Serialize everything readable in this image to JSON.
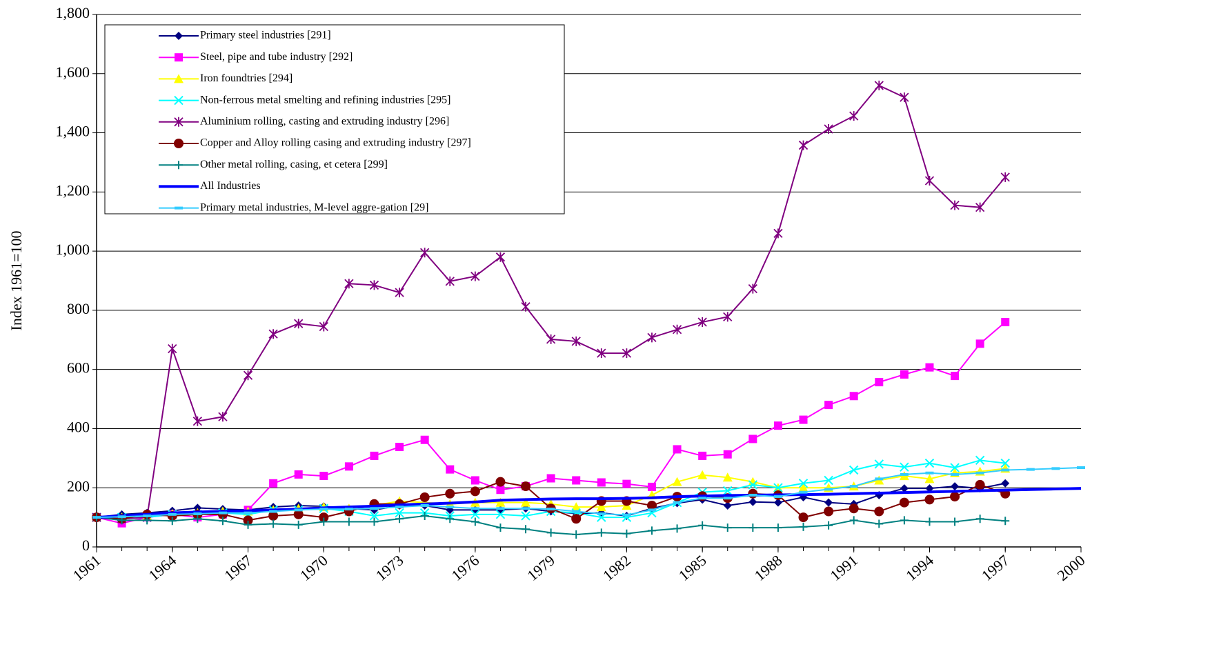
{
  "chart_data": {
    "type": "line",
    "y_label": "Index 1961=100",
    "x": [
      1961,
      1962,
      1963,
      1964,
      1965,
      1966,
      1967,
      1968,
      1969,
      1970,
      1971,
      1972,
      1973,
      1974,
      1975,
      1976,
      1977,
      1978,
      1979,
      1980,
      1981,
      1982,
      1983,
      1984,
      1985,
      1986,
      1987,
      1988,
      1989,
      1990,
      1991,
      1992,
      1993,
      1994,
      1995,
      1996,
      1997,
      1998,
      1999,
      2000
    ],
    "xlim": [
      1961,
      2000
    ],
    "xticks": [
      1961,
      1964,
      1967,
      1970,
      1973,
      1976,
      1979,
      1982,
      1985,
      1988,
      1991,
      1994,
      1997,
      2000
    ],
    "ylim": [
      0,
      1800
    ],
    "yticks": [
      0,
      200,
      400,
      600,
      800,
      {
        "value": 1000,
        "label": "1,000"
      },
      {
        "value": 1200,
        "label": "1,200"
      },
      {
        "value": 1400,
        "label": "1,400"
      },
      {
        "value": 1600,
        "label": "1,600"
      },
      {
        "value": 1800,
        "label": "1,800"
      }
    ],
    "grid": true,
    "legend": "upper left",
    "series": [
      {
        "name": "Primary steel industries [291]",
        "color": "#000080",
        "marker": "diamond",
        "values": [
          100,
          110,
          115,
          122,
          132,
          128,
          125,
          135,
          140,
          137,
          130,
          125,
          140,
          140,
          125,
          125,
          125,
          130,
          120,
          113,
          115,
          105,
          130,
          148,
          160,
          140,
          152,
          150,
          168,
          150,
          145,
          175,
          198,
          198,
          205,
          198,
          215,
          null,
          null,
          null
        ]
      },
      {
        "name": "Steel, pipe and tube industry [292]",
        "color": "#FF00FF",
        "marker": "square",
        "values": [
          100,
          80,
          100,
          110,
          100,
          110,
          125,
          215,
          245,
          240,
          272,
          308,
          338,
          362,
          262,
          225,
          193,
          205,
          232,
          225,
          218,
          213,
          203,
          330,
          308,
          313,
          365,
          410,
          430,
          480,
          510,
          557,
          583,
          607,
          578,
          687,
          760,
          null,
          null,
          null
        ]
      },
      {
        "name": "Iron foundtries [294]",
        "color": "#FFFF00",
        "marker": "triangle",
        "values": [
          100,
          100,
          105,
          112,
          115,
          120,
          120,
          125,
          130,
          135,
          130,
          140,
          155,
          150,
          145,
          150,
          150,
          150,
          145,
          135,
          135,
          140,
          175,
          220,
          243,
          235,
          220,
          200,
          200,
          200,
          205,
          225,
          240,
          230,
          250,
          255,
          265,
          null,
          null,
          null
        ]
      },
      {
        "name": "Non-ferrous metal smelting and refining industries [295]",
        "color": "#00FFFF",
        "marker": "x",
        "values": [
          100,
          100,
          100,
          110,
          110,
          115,
          110,
          125,
          125,
          130,
          120,
          105,
          115,
          115,
          105,
          110,
          110,
          105,
          120,
          115,
          100,
          100,
          115,
          150,
          185,
          190,
          210,
          200,
          215,
          225,
          260,
          280,
          270,
          283,
          268,
          293,
          283,
          null,
          null,
          null
        ]
      },
      {
        "name": "Aluminium rolling, casting and extruding industry [296]",
        "color": "#800080",
        "marker": "asterisk",
        "values": [
          100,
          95,
          100,
          670,
          425,
          440,
          580,
          720,
          755,
          745,
          890,
          885,
          860,
          995,
          898,
          915,
          980,
          812,
          702,
          695,
          655,
          655,
          708,
          735,
          760,
          778,
          873,
          1060,
          1358,
          1413,
          1457,
          1560,
          1520,
          1238,
          1155,
          1148,
          1250,
          null,
          null,
          null
        ]
      },
      {
        "name": "Copper and Alloy rolling casing and extruding industry [297]",
        "color": "#800000",
        "marker": "circle",
        "values": [
          100,
          95,
          110,
          105,
          110,
          110,
          90,
          105,
          110,
          100,
          120,
          145,
          145,
          168,
          180,
          188,
          220,
          205,
          130,
          95,
          155,
          155,
          140,
          170,
          172,
          165,
          180,
          175,
          100,
          120,
          130,
          120,
          150,
          160,
          170,
          210,
          180,
          null,
          null,
          null
        ]
      },
      {
        "name": "Other metal rolling, casing, et cetera [299]",
        "color": "#008080",
        "marker": "plus",
        "values": [
          100,
          90,
          90,
          88,
          95,
          88,
          75,
          78,
          75,
          85,
          85,
          85,
          95,
          105,
          95,
          85,
          65,
          60,
          48,
          42,
          48,
          45,
          55,
          62,
          73,
          65,
          65,
          65,
          68,
          73,
          90,
          78,
          90,
          85,
          85,
          95,
          88,
          null,
          null,
          null
        ]
      },
      {
        "name": "All Industries",
        "color": "#0000FF",
        "marker": "none",
        "width": 4,
        "values": [
          100,
          105,
          110,
          115,
          118,
          120,
          122,
          125,
          128,
          132,
          135,
          138,
          142,
          145,
          148,
          152,
          158,
          160,
          162,
          163,
          163,
          164,
          166,
          170,
          172,
          174,
          175,
          176,
          177,
          178,
          180,
          182,
          184,
          186,
          188,
          190,
          192,
          194,
          196,
          198
        ]
      },
      {
        "name": "Primary metal industries, M-level aggre-gation [29]",
        "color": "#33CCFF",
        "marker": "dash",
        "values": [
          100,
          102,
          105,
          110,
          112,
          115,
          115,
          120,
          125,
          128,
          128,
          130,
          135,
          140,
          135,
          130,
          130,
          130,
          128,
          120,
          112,
          108,
          125,
          150,
          165,
          165,
          175,
          170,
          185,
          195,
          205,
          230,
          245,
          250,
          245,
          250,
          260,
          262,
          265,
          268
        ]
      }
    ]
  }
}
